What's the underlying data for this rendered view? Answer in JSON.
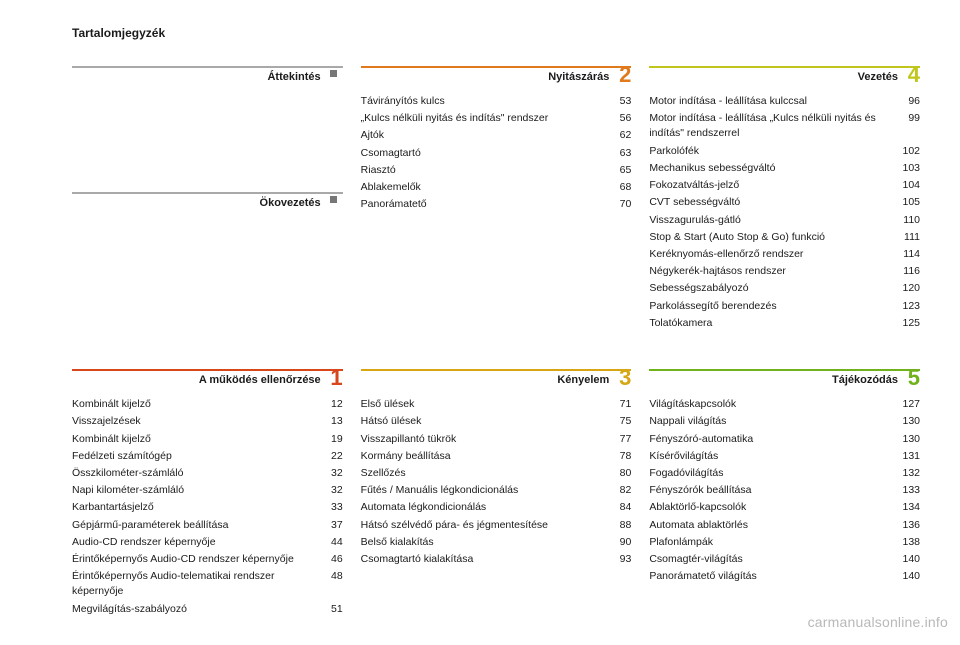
{
  "toc_title": "Tartalomjegyzék",
  "watermark": "carmanualsonline.info",
  "colors": {
    "c1": "#d8461b",
    "c2": "#e07a1c",
    "c3": "#d7a615",
    "c4": "#c0c61c",
    "c5": "#6fb21c",
    "gray": "#a9a9a9"
  },
  "sections": {
    "overview": {
      "title": "Áttekintés",
      "entries": []
    },
    "eco": {
      "title": "Ökovezetés",
      "entries": []
    },
    "s1": {
      "num": "1",
      "title": "A működés ellenőrzése",
      "color_key": "c1",
      "entries": [
        {
          "label": "Kombinált kijelző",
          "page": "12"
        },
        {
          "label": "Visszajelzések",
          "page": "13"
        },
        {
          "label": "Kombinált kijelző",
          "page": "19"
        },
        {
          "label": "Fedélzeti számítógép",
          "page": "22"
        },
        {
          "label": "Összkilométer-számláló",
          "page": "32"
        },
        {
          "label": "Napi kilométer-számláló",
          "page": "32"
        },
        {
          "label": "Karbantartásjelző",
          "page": "33"
        },
        {
          "label": "Gépjármű-paraméterek beállítása",
          "page": "37"
        },
        {
          "label": "Audio-CD rendszer képernyője",
          "page": "44"
        },
        {
          "label": "Érintőképernyős Audio-CD rendszer képernyője",
          "page": "46"
        },
        {
          "label": "Érintőképernyős Audio-telematikai rendszer képernyője",
          "page": "48"
        },
        {
          "label": "Megvilágítás-szabályozó",
          "page": "51"
        }
      ]
    },
    "s2": {
      "num": "2",
      "title": "Nyitászárás",
      "color_key": "c2",
      "entries": [
        {
          "label": "Távirányítós kulcs",
          "page": "53"
        },
        {
          "label": "„Kulcs nélküli nyitás és indítás\" rendszer",
          "page": "56"
        },
        {
          "label": "Ajtók",
          "page": "62"
        },
        {
          "label": "Csomagtartó",
          "page": "63"
        },
        {
          "label": "Riasztó",
          "page": "65"
        },
        {
          "label": "Ablakemelők",
          "page": "68"
        },
        {
          "label": "Panorámatető",
          "page": "70"
        }
      ]
    },
    "s3": {
      "num": "3",
      "title": "Kényelem",
      "color_key": "c3",
      "entries": [
        {
          "label": "Első ülések",
          "page": "71"
        },
        {
          "label": "Hátsó ülések",
          "page": "75"
        },
        {
          "label": "Visszapillantó tükrök",
          "page": "77"
        },
        {
          "label": "Kormány beállítása",
          "page": "78"
        },
        {
          "label": "Szellőzés",
          "page": "80"
        },
        {
          "label": "Fűtés / Manuális légkondicionálás",
          "page": "82"
        },
        {
          "label": "Automata légkondicionálás",
          "page": "84"
        },
        {
          "label": "Hátsó szélvédő pára- és jégmentesítése",
          "page": "88"
        },
        {
          "label": "Belső kialakítás",
          "page": "90"
        },
        {
          "label": "Csomagtartó kialakítása",
          "page": "93"
        }
      ]
    },
    "s4": {
      "num": "4",
      "title": "Vezetés",
      "color_key": "c4",
      "entries": [
        {
          "label": "Motor indítása - leállítása kulccsal",
          "page": "96"
        },
        {
          "label": "Motor indítása - leállítása „Kulcs nélküli nyitás és indítás\" rendszerrel",
          "page": "99"
        },
        {
          "label": "Parkolófék",
          "page": "102"
        },
        {
          "label": "Mechanikus sebességváltó",
          "page": "103"
        },
        {
          "label": "Fokozatváltás-jelző",
          "page": "104"
        },
        {
          "label": "CVT sebességváltó",
          "page": "105"
        },
        {
          "label": "Visszagurulás-gátló",
          "page": "110"
        },
        {
          "label": "Stop & Start (Auto Stop & Go) funkció",
          "page": "111"
        },
        {
          "label": "Keréknyomás-ellenőrző rendszer",
          "page": "114"
        },
        {
          "label": "Négykerék-hajtásos rendszer",
          "page": "116"
        },
        {
          "label": "Sebességszabályozó",
          "page": "120"
        },
        {
          "label": "Parkolássegítő berendezés",
          "page": "123"
        },
        {
          "label": "Tolatókamera",
          "page": "125"
        }
      ]
    },
    "s5": {
      "num": "5",
      "title": "Tájékozódás",
      "color_key": "c5",
      "entries": [
        {
          "label": "Világításkapcsolók",
          "page": "127"
        },
        {
          "label": "Nappali világítás",
          "page": "130"
        },
        {
          "label": "Fényszóró-automatika",
          "page": "130"
        },
        {
          "label": "Kísérővilágítás",
          "page": "131"
        },
        {
          "label": "Fogadóvilágítás",
          "page": "132"
        },
        {
          "label": "Fényszórók beállítása",
          "page": "133"
        },
        {
          "label": "Ablaktörlő-kapcsolók",
          "page": "134"
        },
        {
          "label": "Automata ablaktörlés",
          "page": "136"
        },
        {
          "label": "Plafonlámpák",
          "page": "138"
        },
        {
          "label": "Csomagtér-világítás",
          "page": "140"
        },
        {
          "label": "Panorámatető világítás",
          "page": "140"
        }
      ]
    }
  }
}
